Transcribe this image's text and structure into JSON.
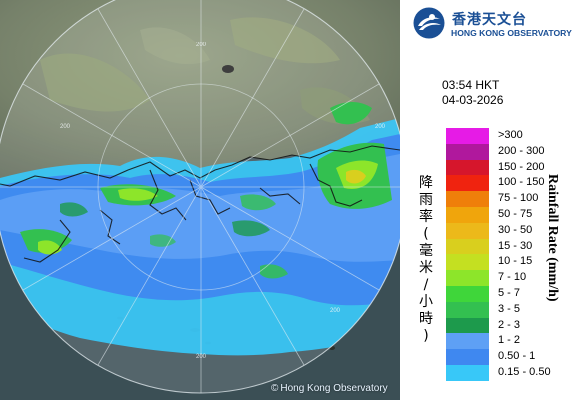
{
  "logo": {
    "name_zh": "香港天文台",
    "name_en": "HONG KONG OBSERVATORY"
  },
  "timestamp": {
    "time": "03:54 HKT",
    "date": "04-03-2026"
  },
  "map": {
    "copyright_symbol": "©",
    "copyright_text": "Hong Kong Observatory",
    "range_rings": [
      "200",
      "200",
      "200",
      "200",
      "200"
    ]
  },
  "legend": {
    "title_zh": [
      "降",
      "雨",
      "率",
      "(",
      "毫",
      "米",
      "/",
      "小",
      "時",
      ")"
    ],
    "title_en": "Rainfall Rate (mm/h)",
    "items": [
      {
        "label": ">300",
        "color": "#e61be6"
      },
      {
        "label": "200 - 300",
        "color": "#b0189d"
      },
      {
        "label": "150 - 200",
        "color": "#d6162c"
      },
      {
        "label": "100 - 150",
        "color": "#f0230f"
      },
      {
        "label": "75 - 100",
        "color": "#ef7f0a"
      },
      {
        "label": "50 - 75",
        "color": "#f0a50c"
      },
      {
        "label": "30 - 50",
        "color": "#ecb91a"
      },
      {
        "label": "15 - 30",
        "color": "#d9cf1e"
      },
      {
        "label": "10 - 15",
        "color": "#c4e021"
      },
      {
        "label": "7 - 10",
        "color": "#8de52a"
      },
      {
        "label": "5 - 7",
        "color": "#3fd63a"
      },
      {
        "label": "3 - 5",
        "color": "#33c050"
      },
      {
        "label": "2 - 3",
        "color": "#1d9a4c"
      },
      {
        "label": "1 - 2",
        "color": "#5ea0f5"
      },
      {
        "label": "0.50 - 1",
        "color": "#3f88f0"
      },
      {
        "label": "0.15 - 0.50",
        "color": "#38c8f8"
      }
    ]
  },
  "colors": {
    "brand": "#1a4f95",
    "sea": "#3b4f55",
    "land": "#7e8a6e",
    "radar_disc_tint": "#ffffff"
  }
}
